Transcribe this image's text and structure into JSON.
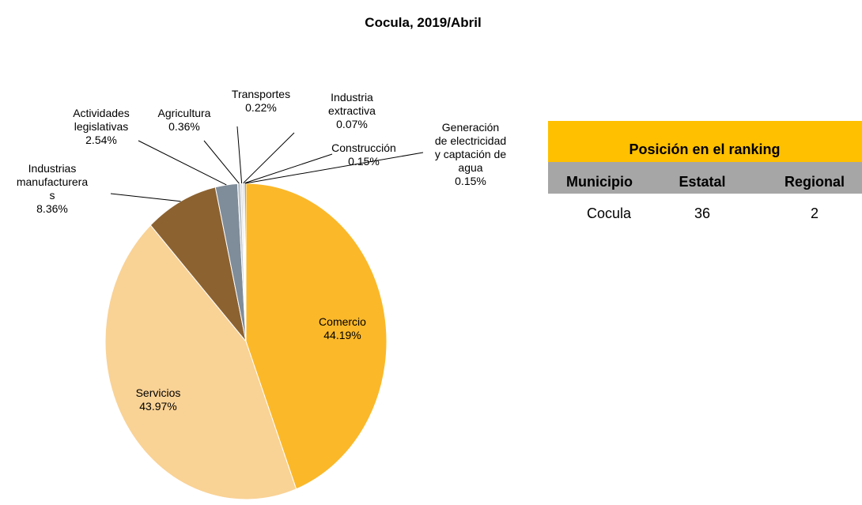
{
  "chart_data": {
    "type": "pie",
    "title": "Cocula, 2019/Abril",
    "categories": [
      "Comercio",
      "Servicios",
      "Industrias\nmanufacturera\ns",
      "Actividades\nlegislativas",
      "Agricultura",
      "Transportes",
      "Industria\nextractiva",
      "Construcción",
      "Generación\nde electricidad\ny captación de\nagua"
    ],
    "values": [
      44.19,
      43.97,
      8.36,
      2.54,
      0.36,
      0.22,
      0.07,
      0.15,
      0.15
    ],
    "value_labels": [
      "44.19%",
      "43.97%",
      "8.36%",
      "2.54%",
      "0.36%",
      "0.22%",
      "0.07%",
      "0.15%",
      "0.15%"
    ],
    "colors": [
      "#fbb829",
      "#f9d295",
      "#8c6230",
      "#7f8c99",
      "#bfc6cc",
      "#d9d9d9",
      "#5a5a5a",
      "#a6a6a6",
      "#404040"
    ]
  },
  "table": {
    "title": "Posición en el ranking",
    "columns": [
      "Municipio",
      "Estatal",
      "Regional"
    ],
    "rows": [
      [
        "Cocula",
        36,
        2
      ]
    ]
  }
}
